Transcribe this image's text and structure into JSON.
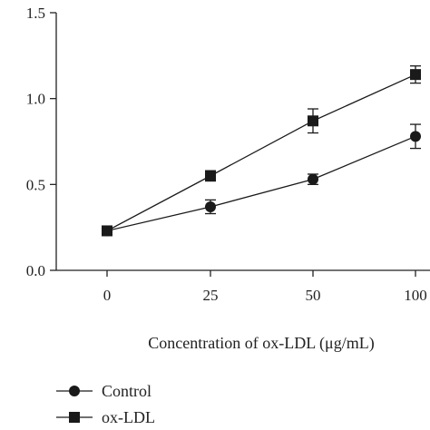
{
  "chart_data": {
    "type": "line",
    "title": "",
    "xlabel": "Concentration of ox-LDL (μg/mL)",
    "ylabel": "",
    "x": [
      0,
      25,
      50,
      100
    ],
    "x_tick_labels": [
      "0",
      "25",
      "50",
      "100"
    ],
    "y_tick_labels": [
      "0.0",
      "0.5",
      "1.0",
      "1.5"
    ],
    "ylim": [
      0,
      1.5
    ],
    "grid": false,
    "legend_position": "bottom-left",
    "series": [
      {
        "name": "Control",
        "marker": "circle",
        "color": "#1a1a1a",
        "values": [
          0.23,
          0.37,
          0.53,
          0.78
        ],
        "errors": [
          0.02,
          0.04,
          0.03,
          0.07
        ]
      },
      {
        "name": "ox-LDL",
        "marker": "square",
        "color": "#1a1a1a",
        "values": [
          0.23,
          0.55,
          0.87,
          1.14
        ],
        "errors": [
          0.02,
          0.03,
          0.07,
          0.05
        ]
      }
    ]
  }
}
